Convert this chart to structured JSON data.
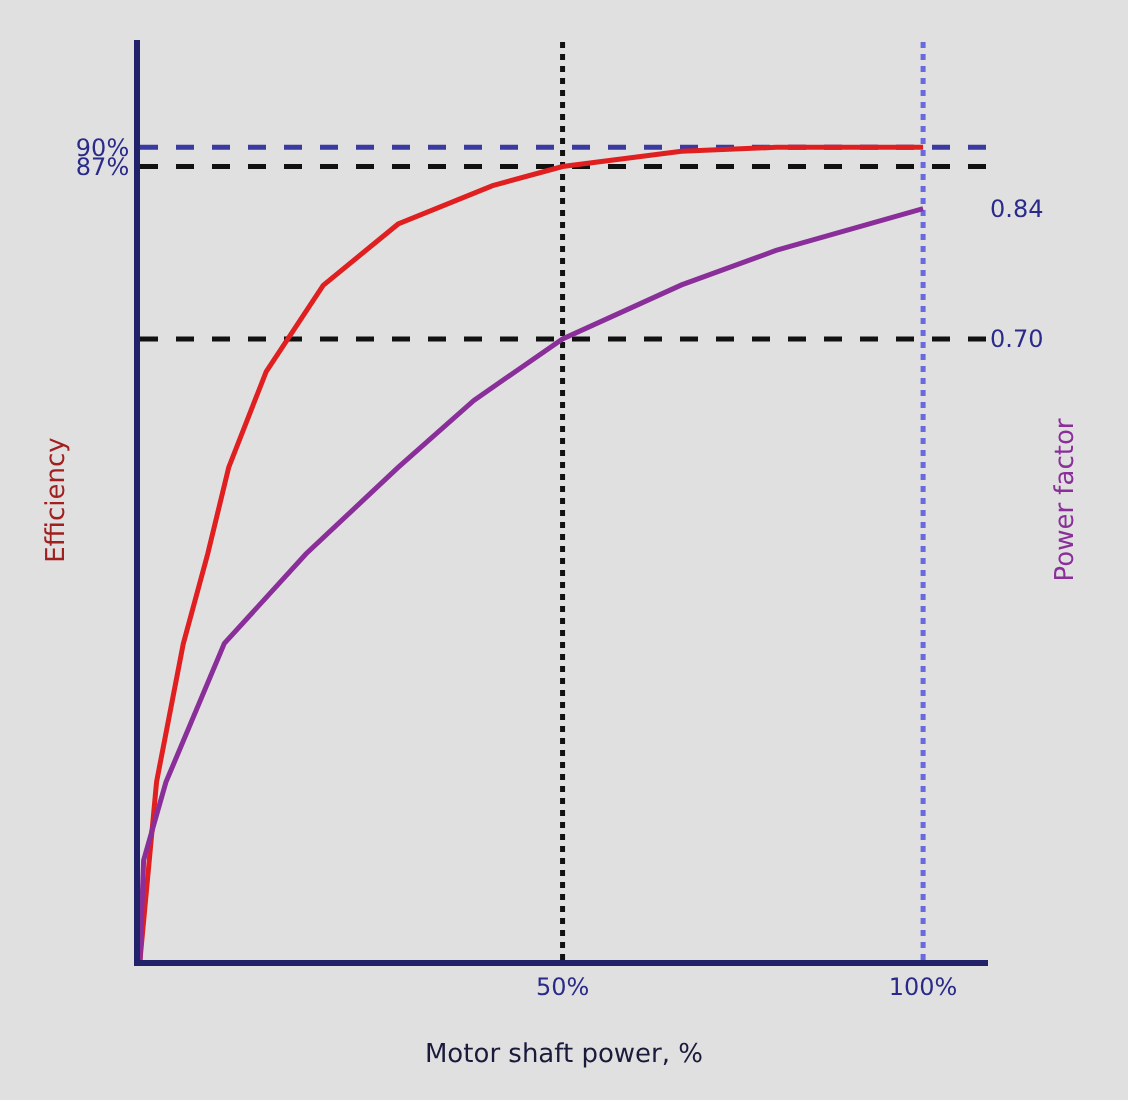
{
  "chart_data": {
    "type": "line",
    "xlabel": "Motor shaft power, %",
    "ylabel": "Efficiency",
    "y2label": "Power factor",
    "xlim": [
      -8.6,
      109
    ],
    "xticks": [
      {
        "value": 50,
        "label": "50%"
      },
      {
        "value": 100,
        "label": "100%"
      }
    ],
    "ylim": [
      -37.2,
      106.8
    ],
    "yticks": [
      {
        "value": 87,
        "label": "87%"
      },
      {
        "value": 90,
        "label": "90%"
      }
    ],
    "y2lim": [
      0.033,
      1.021
    ],
    "y2ticks": [
      {
        "value": 0.7,
        "label": "0.70"
      },
      {
        "value": 0.84,
        "label": "0.84"
      }
    ],
    "grid": false,
    "marker": "none",
    "line_style": "solid",
    "series": [
      {
        "color": "#e02020",
        "x": [
          -8.6,
          -6.3,
          -2.6,
          0.8,
          3.7,
          8.9,
          16.8,
          27.2,
          40.3,
          50,
          66.5,
          79.6,
          100
        ],
        "values": [
          -37.2,
          -9.3,
          12.3,
          26.4,
          39.9,
          54.9,
          68.4,
          78,
          84,
          87,
          89.4,
          90,
          90
        ]
      },
      {
        "color": "#8a2f9a",
        "axis": "y2",
        "x": [
          -8.6,
          -8.1,
          -5,
          3.1,
          14.4,
          27.2,
          37.7,
          50,
          66.5,
          79.6,
          100
        ],
        "values": [
          0.033,
          0.14,
          0.224,
          0.373,
          0.469,
          0.562,
          0.634,
          0.7,
          0.758,
          0.795,
          0.84
        ]
      }
    ],
    "ref_lines": [
      {
        "axis": "y",
        "value": 90,
        "color": "#3a3aa0",
        "line_style": "dashed"
      },
      {
        "axis": "y",
        "value": 87,
        "color": "#111111",
        "line_style": "dashed"
      },
      {
        "axis": "y2",
        "value": 0.7,
        "color": "#111111",
        "line_style": "dashed"
      },
      {
        "axis": "x",
        "value": 50,
        "color": "#111111",
        "line_style": "dotted"
      },
      {
        "axis": "x",
        "value": 100,
        "color": "#6a6ae0",
        "line_style": "dotted"
      }
    ]
  }
}
